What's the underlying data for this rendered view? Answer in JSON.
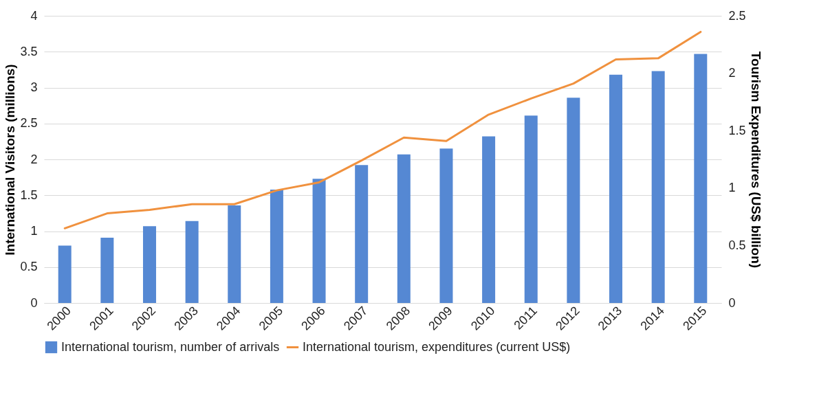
{
  "chart_data": {
    "type": "bar",
    "categories": [
      "2000",
      "2001",
      "2002",
      "2003",
      "2004",
      "2005",
      "2006",
      "2007",
      "2008",
      "2009",
      "2010",
      "2011",
      "2012",
      "2013",
      "2014",
      "2015"
    ],
    "series": [
      {
        "name": "International tourism, number of arrivals",
        "color": "#5588d3",
        "values": [
          0.8,
          0.91,
          1.07,
          1.14,
          1.36,
          1.58,
          1.73,
          1.92,
          2.07,
          2.15,
          2.32,
          2.61,
          2.86,
          3.18,
          3.23,
          3.47
        ]
      },
      {
        "name": "International tourism, expenditures (current US$)",
        "type": "line",
        "axis": "y2",
        "color": "#f0913e",
        "values": [
          0.65,
          0.78,
          0.81,
          0.86,
          0.86,
          0.98,
          1.05,
          1.24,
          1.44,
          1.41,
          1.64,
          1.78,
          1.91,
          2.12,
          2.13,
          2.36
        ]
      }
    ],
    "ylabel": "International Visitors (millions)",
    "y2label": "Tourism Expenditures (US$ billion)",
    "ylim": [
      0,
      4
    ],
    "yticks": [
      0,
      0.5,
      1,
      1.5,
      2,
      2.5,
      3,
      3.5,
      4
    ],
    "y2lim": [
      0,
      2.5
    ],
    "y2ticks": [
      0,
      0.5,
      1,
      1.5,
      2,
      2.5
    ],
    "grid": "y",
    "legend": "bottom"
  }
}
